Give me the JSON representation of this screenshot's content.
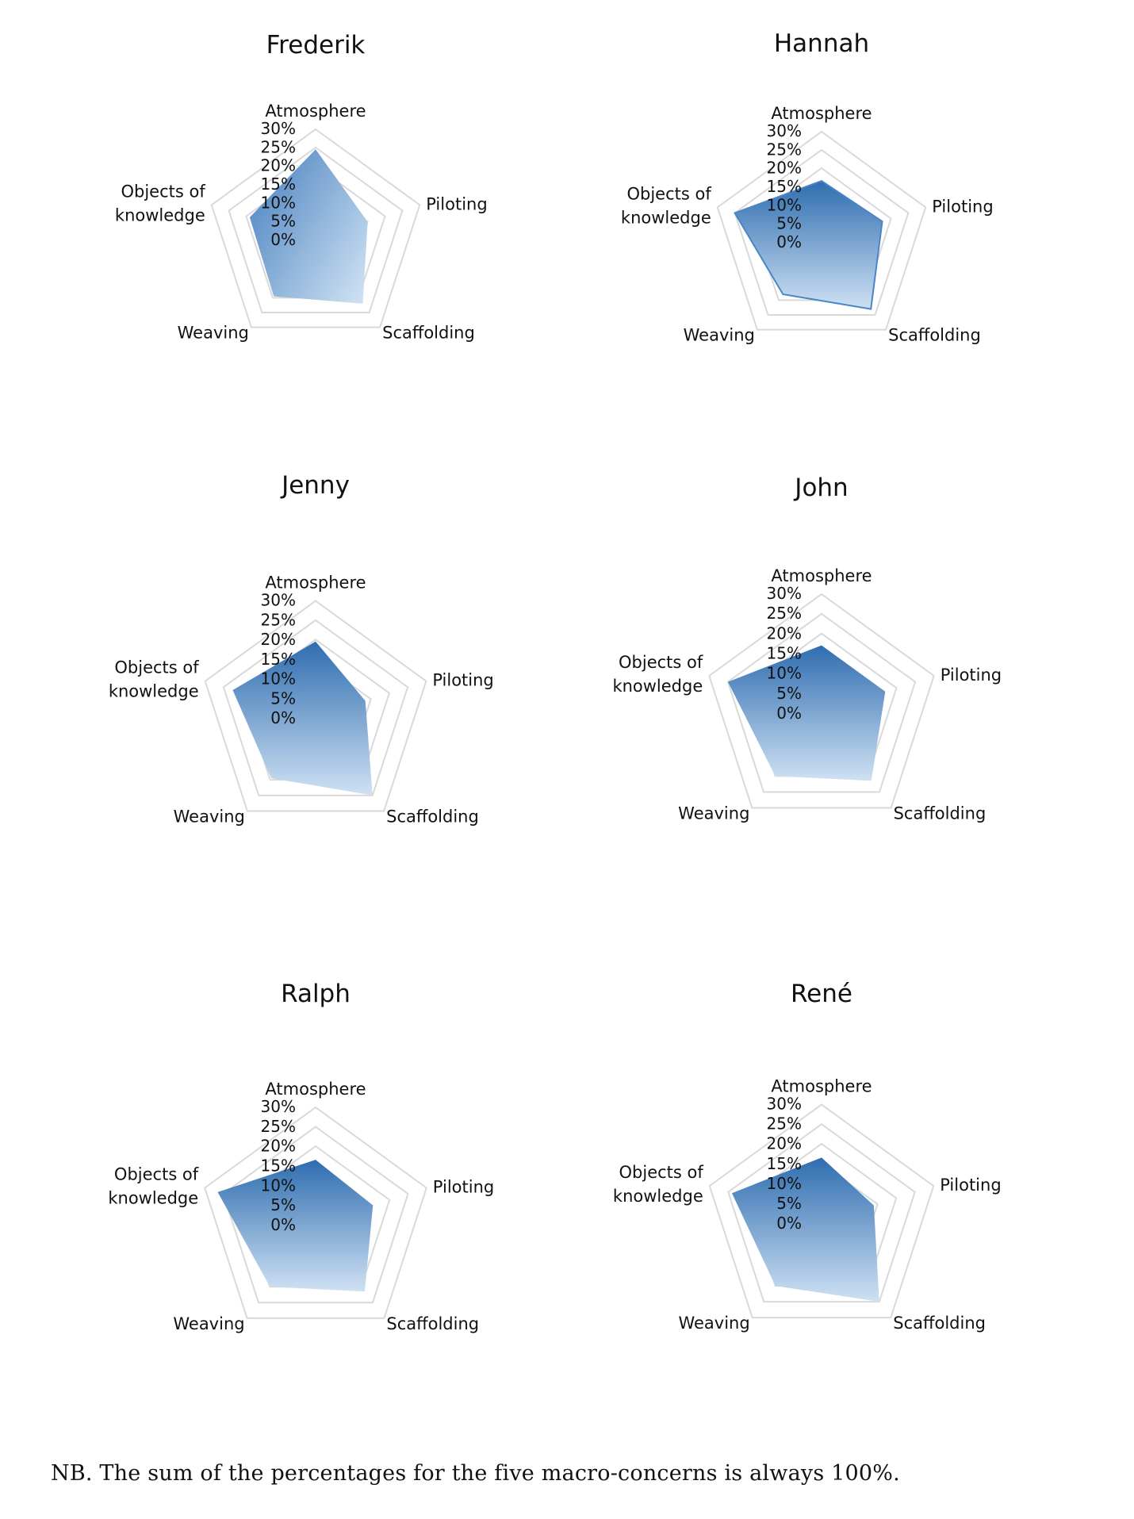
{
  "chart_data": [
    {
      "type": "radar",
      "title": "Frederik",
      "axes": [
        "Atmosphere",
        "Piloting",
        "Scaffolding",
        "Weaving",
        "Objects of knowledge"
      ],
      "values": [
        24.5,
        15,
        22,
        19.5,
        19
      ],
      "unit": "%",
      "rlim": [
        0,
        30
      ],
      "ticks": [
        "30%",
        "25%",
        "20%",
        "15%",
        "10%",
        "5%",
        "0%"
      ],
      "grid": true,
      "fill_style": "diagonal-gradient",
      "colors": {
        "dark": "#4a82c0",
        "light": "#cde0f2"
      }
    },
    {
      "type": "radar",
      "title": "Hannah",
      "axes": [
        "Atmosphere",
        "Piloting",
        "Scaffolding",
        "Weaving",
        "Objects of knowledge"
      ],
      "values": [
        16.5,
        17.5,
        23,
        18,
        25
      ],
      "unit": "%",
      "rlim": [
        0,
        30
      ],
      "ticks": [
        "30%",
        "25%",
        "20%",
        "15%",
        "10%",
        "5%",
        "0%"
      ],
      "grid": true,
      "fill_style": "vertical-gradient-outlined",
      "colors": {
        "dark": "#2f6db0",
        "light": "#cfe1f3",
        "outline": "#4a86c6"
      }
    },
    {
      "type": "radar",
      "title": "Jenny",
      "axes": [
        "Atmosphere",
        "Piloting",
        "Scaffolding",
        "Weaving",
        "Objects of knowledge"
      ],
      "values": [
        19.5,
        13.5,
        25,
        19.5,
        22.5
      ],
      "unit": "%",
      "rlim": [
        0,
        30
      ],
      "ticks": [
        "30%",
        "25%",
        "20%",
        "15%",
        "10%",
        "5%",
        "0%"
      ],
      "grid": true,
      "fill_style": "vertical-gradient",
      "colors": {
        "dark": "#2f6db0",
        "light": "#cfe1f3"
      }
    },
    {
      "type": "radar",
      "title": "John",
      "axes": [
        "Atmosphere",
        "Piloting",
        "Scaffolding",
        "Weaving",
        "Objects of knowledge"
      ],
      "values": [
        17,
        17,
        21.5,
        20,
        25
      ],
      "unit": "%",
      "rlim": [
        0,
        30
      ],
      "ticks": [
        "30%",
        "25%",
        "20%",
        "15%",
        "10%",
        "5%",
        "0%"
      ],
      "grid": true,
      "fill_style": "vertical-gradient",
      "colors": {
        "dark": "#2f6db0",
        "light": "#cfe1f3"
      }
    },
    {
      "type": "radar",
      "title": "Ralph",
      "axes": [
        "Atmosphere",
        "Piloting",
        "Scaffolding",
        "Weaving",
        "Objects of knowledge"
      ],
      "values": [
        16.5,
        15.5,
        21.5,
        20,
        26.5
      ],
      "unit": "%",
      "rlim": [
        0,
        30
      ],
      "ticks": [
        "30%",
        "25%",
        "20%",
        "15%",
        "10%",
        "5%",
        "0%"
      ],
      "grid": true,
      "fill_style": "vertical-gradient",
      "colors": {
        "dark": "#2f6db0",
        "light": "#cfe1f3"
      }
    },
    {
      "type": "radar",
      "title": "René",
      "axes": [
        "Atmosphere",
        "Piloting",
        "Scaffolding",
        "Weaving",
        "Objects of knowledge"
      ],
      "values": [
        16.5,
        14,
        25,
        20,
        24
      ],
      "unit": "%",
      "rlim": [
        0,
        30
      ],
      "ticks": [
        "30%",
        "25%",
        "20%",
        "15%",
        "10%",
        "5%",
        "0%"
      ],
      "grid": true,
      "fill_style": "vertical-gradient",
      "colors": {
        "dark": "#2f6db0",
        "light": "#cfe1f3"
      }
    }
  ],
  "axis_label_lines": {
    "Objects of knowledge": [
      "Objects of",
      "knowledge"
    ]
  },
  "footnote": "NB. The sum of the percentages for the five macro-concerns is always 100%."
}
